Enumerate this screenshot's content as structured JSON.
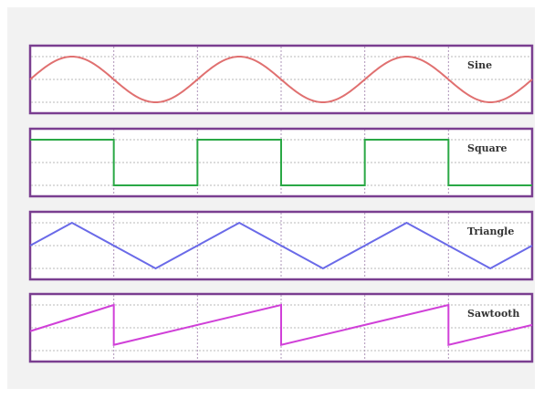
{
  "panels": [
    {
      "id": "sine",
      "label": "Sine",
      "color": "#e07070",
      "shape": "sine"
    },
    {
      "id": "square",
      "label": "Square",
      "color": "#2aa845",
      "shape": "square"
    },
    {
      "id": "triangle",
      "label": "Triangle",
      "color": "#6a6ae8",
      "shape": "triangle"
    },
    {
      "id": "sawtooth",
      "label": "Sawtooth",
      "color": "#d040d8",
      "shape": "sawtooth"
    }
  ],
  "periods": 3,
  "grid_columns": 6,
  "frame_color": "#7a3e90",
  "background_color": "#f2f2f2"
}
